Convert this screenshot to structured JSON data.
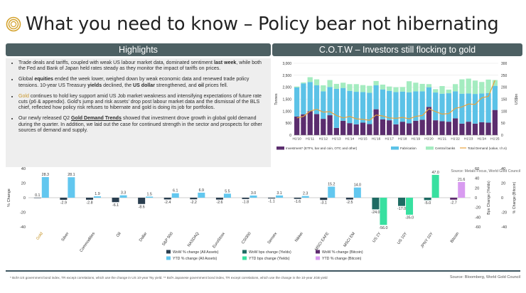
{
  "title": "What you need to know – Policy bear not hibernating",
  "highlights_header": "Highlights",
  "cot_header": "C.O.T.W – Investors still flocking to gold",
  "bullets": [
    {
      "pre": "Trade deals and tariffs, coupled with weak US labour market data, dominated sentiment ",
      "bold": "last week",
      "post": ", while both the Fed and Bank of Japan held rates steady as they monitor the impact of tariffs on prices."
    },
    {
      "pre": "Global ",
      "bold": "equities",
      "mid": " ended the week lower, weighed down by weak economic data and renewed trade policy tensions. 10-year US Treasury ",
      "bold2": "yields",
      "mid2": " declined, the ",
      "bold3": "US dollar",
      "mid3": " strengthened, and ",
      "bold4": "oil",
      "post": " prices fell."
    },
    {
      "gold": "Gold",
      "post": " continues to hold key support amid US Job market weakness and intensifying expectations of future rate cuts (p6 & appendix). Gold's jump and risk assets' drop post labour market data and the dismissal of the BLS chief, reflected how policy risk refuses to hibernate and gold is doing its job for portfolios."
    },
    {
      "pre": "Our newly released Q2 ",
      "link": "Gold Demand Trends",
      "post": " showed that investment drove growth in global gold demand during the quarter. In addition, we laid out the case for continued strength in the sector and prospects for other sources of demand and supply."
    }
  ],
  "source_top": "Source: Metals Focus, World Gold Council",
  "footnote": "* BofA US government bond index, TR except correlations, which use the change in US 10-year Tsy yield. ** BofA Japanese government bond index, TR except correlations, which use the change in the 10-year JGB yield",
  "source_bottom": "Source: Bloomberg, World Gold Council",
  "colors": {
    "header_bg": "#4d6063",
    "investment": "#5b2d6e",
    "fabrication": "#5bc2e7",
    "central_banks": "#a4ecc0",
    "demand_line": "#e8a33d",
    "wow_assets": "#2a3e4f",
    "ytd_assets": "#62c7ef",
    "wow_yields": "#1e6b63",
    "ytd_yields": "#38e0a0",
    "wow_btc": "#5d2a6e",
    "ytd_btc": "#d89bf0"
  },
  "chart_data": [
    {
      "type": "bar",
      "title": "C.O.T.W – Investors still flocking to gold",
      "stacked": true,
      "categories": [
        "H1'10",
        "H2'10",
        "H1'11",
        "H2'11",
        "H1'12",
        "H2'12",
        "H1'13",
        "H2'13",
        "H1'14",
        "H2'14",
        "H1'15",
        "H2'15",
        "H1'16",
        "H2'16",
        "H1'17",
        "H2'17",
        "H1'18",
        "H2'18",
        "H1'19",
        "H2'19",
        "H1'20",
        "H2'20",
        "H1'21",
        "H2'21",
        "H1'22",
        "H2'22",
        "H1'23",
        "H2'23",
        "H1'24",
        "H2'24",
        "H1'25"
      ],
      "x_tick_labels": [
        "H1'10",
        "H1'11",
        "H1'12",
        "H1'13",
        "H1'14",
        "H1'15",
        "H1'16",
        "H1'17",
        "H1'18",
        "H1'19",
        "H1'20",
        "H1'21",
        "H1'22",
        "H1'23",
        "H1'24",
        "H1'25"
      ],
      "series": [
        {
          "name": "Investment* (ETFs, bar and coin, OTC and other)",
          "values": [
            780,
            870,
            1000,
            880,
            680,
            830,
            300,
            600,
            500,
            450,
            520,
            460,
            1080,
            660,
            620,
            450,
            560,
            490,
            600,
            640,
            1180,
            620,
            580,
            560,
            700,
            480,
            560,
            480,
            540,
            520,
            1050
          ]
        },
        {
          "name": "Fabrication",
          "values": [
            1210,
            1290,
            1220,
            1200,
            1150,
            1180,
            1630,
            1370,
            1350,
            1360,
            1280,
            1310,
            1000,
            1250,
            1230,
            1350,
            1260,
            1300,
            1230,
            1190,
            820,
            1160,
            1150,
            1190,
            1130,
            1250,
            1180,
            1240,
            1200,
            1240,
            1010
          ]
        },
        {
          "name": "Central banks",
          "values": [
            40,
            40,
            200,
            250,
            250,
            290,
            210,
            220,
            280,
            320,
            290,
            290,
            180,
            200,
            180,
            200,
            190,
            460,
            360,
            310,
            130,
            140,
            320,
            150,
            300,
            600,
            620,
            560,
            480,
            560,
            240
          ]
        },
        {
          "name": "Total Demand (value, r.h.s)",
          "axis": "right",
          "values": [
            72,
            78,
            100,
            108,
            96,
            98,
            82,
            72,
            78,
            68,
            66,
            62,
            84,
            80,
            72,
            70,
            74,
            68,
            78,
            82,
            110,
            98,
            88,
            90,
            112,
            118,
            130,
            128,
            156,
            162,
            229
          ]
        }
      ],
      "ylabel": "Tonnes",
      "ylabel_right": "US$bn",
      "ylim": [
        0,
        3000
      ],
      "ylim_right": [
        0,
        300
      ],
      "y_ticks": [
        "0",
        "500",
        "1,000",
        "1,500",
        "2,000",
        "2,500",
        "3,000"
      ],
      "y_ticks_right": [
        "0",
        "50",
        "100",
        "150",
        "200",
        "250",
        "300"
      ]
    },
    {
      "type": "bar",
      "title": "Asset performance",
      "categories": [
        "Gold",
        "Silver",
        "Commodities",
        "Oil",
        "Dollar",
        "S&P 500",
        "NASDAQ",
        "EuroStoxx",
        "CSI300",
        "Sensex",
        "Nikkei",
        "MSCI EAFE",
        "MSCI EM",
        "US 2Y",
        "US 10Y",
        "JPNY 10Y",
        "Bitcoin"
      ],
      "series": [
        {
          "name": "WoW % change (All Assets)",
          "axis": "left",
          "values": [
            0.1,
            -2.9,
            -2.8,
            -6.1,
            -8.6,
            -2.4,
            -2.2,
            -2.6,
            -1.8,
            -1.1,
            -1.6,
            -3.1,
            -2.5,
            null,
            null,
            null,
            null
          ]
        },
        {
          "name": "YTD % change (All Assets)",
          "axis": "left",
          "values": [
            28.3,
            28.1,
            1.9,
            3.3,
            1.5,
            6.1,
            6.9,
            5.5,
            3.0,
            3.1,
            2.3,
            15.2,
            14.0,
            null,
            null,
            null,
            null
          ]
        },
        {
          "name": "WoW bps change (Yields)",
          "axis": "middle",
          "values": [
            null,
            null,
            null,
            null,
            null,
            null,
            null,
            null,
            null,
            null,
            null,
            null,
            null,
            -24.0,
            -17.0,
            -5.0,
            null
          ]
        },
        {
          "name": "YTD bps change (Yields)",
          "axis": "middle",
          "values": [
            null,
            null,
            null,
            null,
            null,
            null,
            null,
            null,
            null,
            null,
            null,
            null,
            null,
            -56.0,
            -35.0,
            47.0,
            null
          ]
        },
        {
          "name": "WoW % change (Bitcoin)",
          "axis": "right",
          "values": [
            null,
            null,
            null,
            null,
            null,
            null,
            null,
            null,
            null,
            null,
            null,
            null,
            null,
            null,
            null,
            null,
            -2.7
          ]
        },
        {
          "name": "YTD % change (Bitcoin)",
          "axis": "right",
          "values": [
            null,
            null,
            null,
            null,
            null,
            null,
            null,
            null,
            null,
            null,
            null,
            null,
            null,
            null,
            null,
            null,
            21.6
          ]
        }
      ],
      "ylabel": "% Change",
      "ylabel_middle": "Bps Change (Yields)",
      "ylabel_right": "% Change (Bitcoin)",
      "ylim": [
        -40,
        40
      ],
      "ylim_middle": [
        -60,
        60
      ],
      "ylim_right": [
        -40,
        40
      ],
      "y_ticks": [
        "-40",
        "-20",
        "0",
        "20",
        "40"
      ],
      "y_ticks_middle": [
        "-60",
        "-40",
        "-20",
        "0",
        "20",
        "40",
        "60"
      ],
      "y_ticks_right": [
        "-40",
        "-20",
        "0",
        "20",
        "40"
      ]
    }
  ]
}
